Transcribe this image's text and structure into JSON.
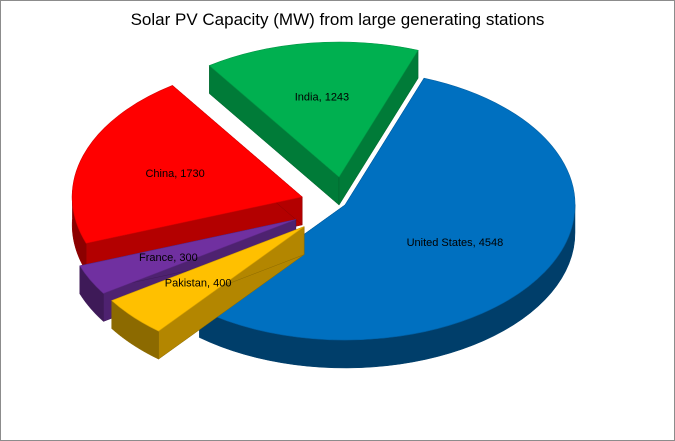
{
  "chart_data": {
    "type": "pie",
    "title": "Solar PV Capacity (MW) from large generating stations",
    "slices": [
      {
        "name": "United States",
        "value": 4548,
        "label": "United States, 4548",
        "color": "#0070C0"
      },
      {
        "name": "Pakistan",
        "value": 400,
        "label": "Pakistan, 400",
        "color": "#FFC000"
      },
      {
        "name": "France",
        "value": 300,
        "label": "France, 300",
        "color": "#7030A0"
      },
      {
        "name": "China",
        "value": 1730,
        "label": "China, 1730",
        "color": "#FF0000"
      },
      {
        "name": "India",
        "value": 1243,
        "label": "India, 1243",
        "color": "#00B050"
      }
    ],
    "exploded": true,
    "three_d": true,
    "legend": "none"
  }
}
